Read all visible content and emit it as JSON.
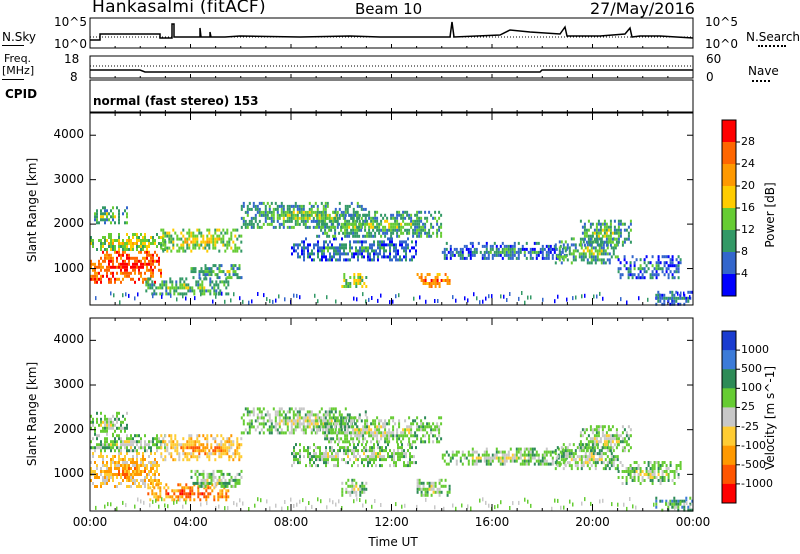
{
  "header": {
    "station": "Hankasalmi (fitACF)",
    "beam": "Beam 10",
    "date": "27/May/2016"
  },
  "top_panels": {
    "nsky_label": "N.Sky",
    "nsearch_label": "N.Search",
    "exp_tick_high": "10^5",
    "exp_tick_low": "10^0",
    "freq_label": "Freq.",
    "freq_unit": "[MHz]",
    "freq_ticks": [
      "18",
      "8"
    ],
    "nave_label": "Nave",
    "nave_ticks": [
      "60",
      "0"
    ],
    "cpid_label": "CPID",
    "cpid_value": "normal (fast stereo) 153"
  },
  "chart_data": [
    {
      "type": "heatmap",
      "variable": "Power",
      "ylabel": "Slant Range [km]",
      "xlabel": "Time UT",
      "x_ticks": [
        "00:00",
        "04:00",
        "08:00",
        "12:00",
        "16:00",
        "20:00",
        "00:00"
      ],
      "xlim_hours": [
        0,
        24
      ],
      "ylim": [
        180,
        4500
      ],
      "y_ticks": [
        "1000",
        "2000",
        "3000",
        "4000"
      ],
      "colorbar": {
        "label": "Power [dB]",
        "ticks": [
          "4",
          "8",
          "12",
          "16",
          "20",
          "24",
          "28"
        ],
        "colors": [
          "#0000ff",
          "#3366cc",
          "#339966",
          "#66cc33",
          "#ffcc00",
          "#ff9900",
          "#ff6600",
          "#ff0000"
        ]
      },
      "echo_regions": [
        {
          "t0": 0.0,
          "t1": 2.8,
          "r0": 700,
          "r1": 1400,
          "level": 7
        },
        {
          "t0": 0.0,
          "t1": 3.0,
          "r0": 1400,
          "r1": 1800,
          "level": 4
        },
        {
          "t0": 0.0,
          "t1": 1.5,
          "r0": 2000,
          "r1": 2400,
          "level": 3
        },
        {
          "t0": 2.8,
          "t1": 6.0,
          "r0": 1400,
          "r1": 1900,
          "level": 4
        },
        {
          "t0": 2.2,
          "t1": 5.5,
          "r0": 400,
          "r1": 800,
          "level": 3
        },
        {
          "t0": 4.0,
          "t1": 6.0,
          "r0": 800,
          "r1": 1100,
          "level": 3
        },
        {
          "t0": 6.0,
          "t1": 11.0,
          "r0": 1900,
          "r1": 2500,
          "level": 3
        },
        {
          "t0": 8.0,
          "t1": 13.0,
          "r0": 1200,
          "r1": 1700,
          "level": 2
        },
        {
          "t0": 9.0,
          "t1": 14.0,
          "r0": 1700,
          "r1": 2300,
          "level": 3
        },
        {
          "t0": 10.0,
          "t1": 11.0,
          "r0": 600,
          "r1": 900,
          "level": 4
        },
        {
          "t0": 13.0,
          "t1": 14.3,
          "r0": 600,
          "r1": 900,
          "level": 6
        },
        {
          "t0": 14.0,
          "t1": 19.0,
          "r0": 1200,
          "r1": 1600,
          "level": 2
        },
        {
          "t0": 18.5,
          "t1": 21.0,
          "r0": 1100,
          "r1": 1700,
          "level": 3
        },
        {
          "t0": 19.5,
          "t1": 21.5,
          "r0": 1500,
          "r1": 2100,
          "level": 3
        },
        {
          "t0": 21.0,
          "t1": 23.5,
          "r0": 800,
          "r1": 1300,
          "level": 2
        },
        {
          "t0": 22.5,
          "t1": 24.0,
          "r0": 200,
          "r1": 500,
          "level": 2
        }
      ]
    },
    {
      "type": "heatmap",
      "variable": "Velocity",
      "ylabel": "Slant Range [km]",
      "xlabel": "Time UT",
      "x_ticks": [
        "00:00",
        "04:00",
        "08:00",
        "12:00",
        "16:00",
        "20:00",
        "00:00"
      ],
      "xlim_hours": [
        0,
        24
      ],
      "ylim": [
        180,
        4500
      ],
      "y_ticks": [
        "1000",
        "2000",
        "3000",
        "4000"
      ],
      "colorbar": {
        "label": "Velocity [m s^-1]",
        "ticks": [
          "1000",
          "500",
          "100",
          "25",
          "-25",
          "-100",
          "-500",
          "-1000"
        ],
        "colors": [
          "#1a3cd0",
          "#3c7bd8",
          "#2e8b57",
          "#66cc33",
          "#c8c8c8",
          "#ffcc33",
          "#ff9900",
          "#ff5500",
          "#ff0000"
        ]
      },
      "echo_regions": [
        {
          "t0": 0.0,
          "t1": 2.8,
          "r0": 700,
          "r1": 1500,
          "level": 6
        },
        {
          "t0": 0.0,
          "t1": 3.0,
          "r0": 1500,
          "r1": 1900,
          "level": 4
        },
        {
          "t0": 0.0,
          "t1": 1.5,
          "r0": 1900,
          "r1": 2400,
          "level": 4
        },
        {
          "t0": 2.8,
          "t1": 6.0,
          "r0": 1300,
          "r1": 1900,
          "level": 6
        },
        {
          "t0": 2.2,
          "t1": 5.5,
          "r0": 400,
          "r1": 800,
          "level": 7
        },
        {
          "t0": 4.0,
          "t1": 6.0,
          "r0": 700,
          "r1": 1100,
          "level": 4
        },
        {
          "t0": 6.0,
          "t1": 11.0,
          "r0": 1900,
          "r1": 2500,
          "level": 4
        },
        {
          "t0": 8.0,
          "t1": 13.0,
          "r0": 1200,
          "r1": 1700,
          "level": 4
        },
        {
          "t0": 9.0,
          "t1": 14.0,
          "r0": 1700,
          "r1": 2300,
          "level": 4
        },
        {
          "t0": 10.0,
          "t1": 11.0,
          "r0": 500,
          "r1": 900,
          "level": 4
        },
        {
          "t0": 13.0,
          "t1": 14.3,
          "r0": 500,
          "r1": 900,
          "level": 4
        },
        {
          "t0": 14.0,
          "t1": 19.0,
          "r0": 1200,
          "r1": 1600,
          "level": 4
        },
        {
          "t0": 18.5,
          "t1": 21.0,
          "r0": 1100,
          "r1": 1700,
          "level": 4
        },
        {
          "t0": 19.5,
          "t1": 21.5,
          "r0": 1500,
          "r1": 2100,
          "level": 4
        },
        {
          "t0": 21.0,
          "t1": 23.5,
          "r0": 800,
          "r1": 1300,
          "level": 4
        },
        {
          "t0": 22.5,
          "t1": 24.0,
          "r0": 200,
          "r1": 500,
          "level": 3
        }
      ]
    }
  ]
}
